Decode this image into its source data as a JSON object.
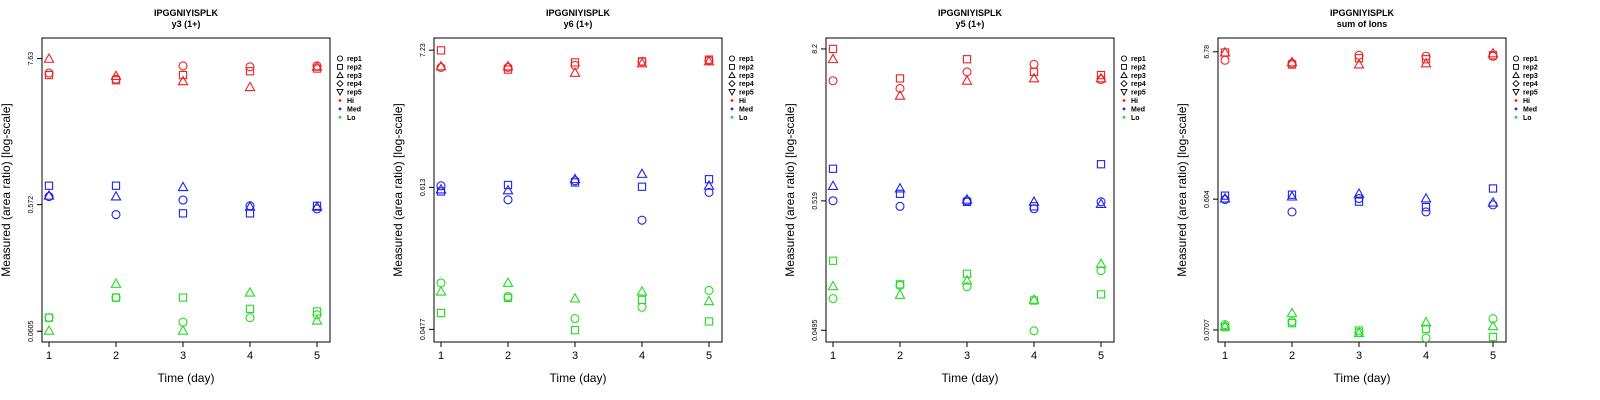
{
  "figure_title": "IPGGNIYISPLK",
  "marker_colors": {
    "Hi": "#ee2222",
    "Med": "#2222ee",
    "Lo": "#22dd22"
  },
  "rep_shapes": {
    "rep1": "circle",
    "rep2": "square",
    "rep3": "triangle-up",
    "rep4": "diamond",
    "rep5": "triangle-down"
  },
  "chart_data": [
    {
      "type": "scatter",
      "title": "IPGGNIYISPLK",
      "subtitle": "y3 (1+)",
      "xlabel": "Time (day)",
      "ylabel": "Measured (area ratio) [log-scale]",
      "x_ticks": [
        "1",
        "2",
        "3",
        "4",
        "5"
      ],
      "y_ticks": [
        {
          "value": 7.63,
          "label": "7.63"
        },
        {
          "value": 0.572,
          "label": "0.572"
        },
        {
          "value": 0.0605,
          "label": "0.0605"
        }
      ],
      "ylim_log": [
        0.05,
        11.0
      ],
      "legend": [
        "rep1",
        "rep2",
        "rep3",
        "rep4",
        "rep5",
        "Hi",
        "Med",
        "Lo"
      ],
      "series": [
        {
          "group": "Hi",
          "rep": "rep1",
          "x": [
            1,
            2,
            3,
            4,
            5
          ],
          "y": [
            5.9,
            5.3,
            6.7,
            6.6,
            6.7
          ]
        },
        {
          "group": "Hi",
          "rep": "rep2",
          "x": [
            1,
            2,
            3,
            4,
            5
          ],
          "y": [
            5.7,
            5.2,
            5.7,
            6.1,
            6.4
          ]
        },
        {
          "group": "Hi",
          "rep": "rep3",
          "x": [
            1,
            2,
            3,
            4,
            5
          ],
          "y": [
            7.6,
            5.6,
            5.1,
            4.6,
            6.6
          ]
        },
        {
          "group": "Med",
          "rep": "rep1",
          "x": [
            1,
            2,
            3,
            4,
            5
          ],
          "y": [
            0.66,
            0.48,
            0.62,
            0.56,
            0.53
          ]
        },
        {
          "group": "Med",
          "rep": "rep2",
          "x": [
            1,
            2,
            3,
            4,
            5
          ],
          "y": [
            0.8,
            0.8,
            0.49,
            0.49,
            0.56
          ]
        },
        {
          "group": "Med",
          "rep": "rep3",
          "x": [
            1,
            2,
            3,
            4,
            5
          ],
          "y": [
            0.67,
            0.66,
            0.78,
            0.55,
            0.55
          ]
        },
        {
          "group": "Lo",
          "rep": "rep1",
          "x": [
            1,
            2,
            3,
            4,
            5
          ],
          "y": [
            0.077,
            0.11,
            0.071,
            0.077,
            0.081
          ]
        },
        {
          "group": "Lo",
          "rep": "rep2",
          "x": [
            1,
            2,
            3,
            4,
            5
          ],
          "y": [
            0.077,
            0.11,
            0.11,
            0.09,
            0.086
          ]
        },
        {
          "group": "Lo",
          "rep": "rep3",
          "x": [
            1,
            2,
            3,
            4,
            5
          ],
          "y": [
            0.061,
            0.14,
            0.061,
            0.12,
            0.073
          ]
        }
      ]
    },
    {
      "type": "scatter",
      "title": "IPGGNIYISPLK",
      "subtitle": "y6 (1+)",
      "xlabel": "Time (day)",
      "ylabel": "Measured (area ratio) [log-scale]",
      "x_ticks": [
        "1",
        "2",
        "3",
        "4",
        "5"
      ],
      "y_ticks": [
        {
          "value": 7.23,
          "label": "7.23"
        },
        {
          "value": 0.613,
          "label": "0.613"
        },
        {
          "value": 0.0477,
          "label": "0.0477"
        }
      ],
      "ylim_log": [
        0.038,
        9.0
      ],
      "legend": [
        "rep1",
        "rep2",
        "rep3",
        "rep4",
        "rep5",
        "Hi",
        "Med",
        "Lo"
      ],
      "series": [
        {
          "group": "Hi",
          "rep": "rep1",
          "x": [
            1,
            2,
            3,
            4,
            5
          ],
          "y": [
            5.3,
            5.3,
            5.5,
            5.9,
            6.0
          ]
        },
        {
          "group": "Hi",
          "rep": "rep2",
          "x": [
            1,
            2,
            3,
            4,
            5
          ],
          "y": [
            7.2,
            5.1,
            5.8,
            5.9,
            6.1
          ]
        },
        {
          "group": "Hi",
          "rep": "rep3",
          "x": [
            1,
            2,
            3,
            4,
            5
          ],
          "y": [
            5.4,
            5.4,
            4.8,
            5.7,
            5.9
          ]
        },
        {
          "group": "Med",
          "rep": "rep1",
          "x": [
            1,
            2,
            3,
            4,
            5
          ],
          "y": [
            0.63,
            0.49,
            0.69,
            0.34,
            0.56
          ]
        },
        {
          "group": "Med",
          "rep": "rep2",
          "x": [
            1,
            2,
            3,
            4,
            5
          ],
          "y": [
            0.57,
            0.64,
            0.67,
            0.62,
            0.71
          ]
        },
        {
          "group": "Med",
          "rep": "rep3",
          "x": [
            1,
            2,
            3,
            4,
            5
          ],
          "y": [
            0.59,
            0.58,
            0.71,
            0.78,
            0.63
          ]
        },
        {
          "group": "Lo",
          "rep": "rep1",
          "x": [
            1,
            2,
            3,
            4,
            5
          ],
          "y": [
            0.11,
            0.086,
            0.058,
            0.071,
            0.096
          ]
        },
        {
          "group": "Lo",
          "rep": "rep2",
          "x": [
            1,
            2,
            3,
            4,
            5
          ],
          "y": [
            0.064,
            0.084,
            0.047,
            0.081,
            0.055
          ]
        },
        {
          "group": "Lo",
          "rep": "rep3",
          "x": [
            1,
            2,
            3,
            4,
            5
          ],
          "y": [
            0.094,
            0.11,
            0.083,
            0.094,
            0.079
          ]
        }
      ]
    },
    {
      "type": "scatter",
      "title": "IPGGNIYISPLK",
      "subtitle": "y5 (1+)",
      "xlabel": "Time (day)",
      "ylabel": "Measured (area ratio) [log-scale]",
      "x_ticks": [
        "1",
        "2",
        "3",
        "4",
        "5"
      ],
      "y_ticks": [
        {
          "value": 8.2,
          "label": "8.2"
        },
        {
          "value": 0.519,
          "label": "0.519"
        },
        {
          "value": 0.0495,
          "label": "0.0495"
        }
      ],
      "ylim_log": [
        0.04,
        10.0
      ],
      "legend": [
        "rep1",
        "rep2",
        "rep3",
        "rep4",
        "rep5",
        "Hi",
        "Med",
        "Lo"
      ],
      "series": [
        {
          "group": "Hi",
          "rep": "rep1",
          "x": [
            1,
            2,
            3,
            4,
            5
          ],
          "y": [
            4.6,
            4.0,
            5.4,
            6.2,
            4.7
          ]
        },
        {
          "group": "Hi",
          "rep": "rep2",
          "x": [
            1,
            2,
            3,
            4,
            5
          ],
          "y": [
            8.2,
            4.8,
            6.8,
            5.4,
            5.1
          ]
        },
        {
          "group": "Hi",
          "rep": "rep3",
          "x": [
            1,
            2,
            3,
            4,
            5
          ],
          "y": [
            6.8,
            3.5,
            4.6,
            4.8,
            4.8
          ]
        },
        {
          "group": "Med",
          "rep": "rep1",
          "x": [
            1,
            2,
            3,
            4,
            5
          ],
          "y": [
            0.52,
            0.47,
            0.52,
            0.45,
            0.51
          ]
        },
        {
          "group": "Med",
          "rep": "rep2",
          "x": [
            1,
            2,
            3,
            4,
            5
          ],
          "y": [
            0.93,
            0.59,
            0.51,
            0.47,
            1.01
          ]
        },
        {
          "group": "Med",
          "rep": "rep3",
          "x": [
            1,
            2,
            3,
            4,
            5
          ],
          "y": [
            0.68,
            0.65,
            0.53,
            0.51,
            0.49
          ]
        },
        {
          "group": "Lo",
          "rep": "rep1",
          "x": [
            1,
            2,
            3,
            4,
            5
          ],
          "y": [
            0.088,
            0.112,
            0.109,
            0.049,
            0.146
          ]
        },
        {
          "group": "Lo",
          "rep": "rep2",
          "x": [
            1,
            2,
            3,
            4,
            5
          ],
          "y": [
            0.175,
            0.114,
            0.138,
            0.085,
            0.095
          ]
        },
        {
          "group": "Lo",
          "rep": "rep3",
          "x": [
            1,
            2,
            3,
            4,
            5
          ],
          "y": [
            0.11,
            0.094,
            0.122,
            0.086,
            0.165
          ]
        }
      ]
    },
    {
      "type": "scatter",
      "title": "IPGGNIYISPLK",
      "subtitle": "sum of Ions",
      "xlabel": "Time (day)",
      "ylabel": "Measured (area ratio) [log-scale]",
      "x_ticks": [
        "1",
        "2",
        "3",
        "4",
        "5"
      ],
      "y_ticks": [
        {
          "value": 6.78,
          "label": "6.78"
        },
        {
          "value": 0.604,
          "label": "0.604"
        },
        {
          "value": 0.0707,
          "label": "0.0707"
        }
      ],
      "ylim_log": [
        0.058,
        8.5
      ],
      "legend": [
        "rep1",
        "rep2",
        "rep3",
        "rep4",
        "rep5",
        "Hi",
        "Med",
        "Lo"
      ],
      "series": [
        {
          "group": "Hi",
          "rep": "rep1",
          "x": [
            1,
            2,
            3,
            4,
            5
          ],
          "y": [
            5.9,
            5.6,
            6.4,
            6.3,
            6.3
          ]
        },
        {
          "group": "Hi",
          "rep": "rep2",
          "x": [
            1,
            2,
            3,
            4,
            5
          ],
          "y": [
            6.7,
            5.5,
            6.1,
            6.0,
            6.4
          ]
        },
        {
          "group": "Hi",
          "rep": "rep3",
          "x": [
            1,
            2,
            3,
            4,
            5
          ],
          "y": [
            6.7,
            5.7,
            5.5,
            5.6,
            6.6
          ]
        },
        {
          "group": "Med",
          "rep": "rep1",
          "x": [
            1,
            2,
            3,
            4,
            5
          ],
          "y": [
            0.6,
            0.49,
            0.61,
            0.49,
            0.55
          ]
        },
        {
          "group": "Med",
          "rep": "rep2",
          "x": [
            1,
            2,
            3,
            4,
            5
          ],
          "y": [
            0.64,
            0.65,
            0.58,
            0.53,
            0.72
          ]
        },
        {
          "group": "Med",
          "rep": "rep3",
          "x": [
            1,
            2,
            3,
            4,
            5
          ],
          "y": [
            0.61,
            0.63,
            0.66,
            0.61,
            0.57
          ]
        },
        {
          "group": "Lo",
          "rep": "rep1",
          "x": [
            1,
            2,
            3,
            4,
            5
          ],
          "y": [
            0.077,
            0.081,
            0.068,
            0.062,
            0.085
          ]
        },
        {
          "group": "Lo",
          "rep": "rep2",
          "x": [
            1,
            2,
            3,
            4,
            5
          ],
          "y": [
            0.074,
            0.079,
            0.07,
            0.072,
            0.063
          ]
        },
        {
          "group": "Lo",
          "rep": "rep3",
          "x": [
            1,
            2,
            3,
            4,
            5
          ],
          "y": [
            0.075,
            0.093,
            0.067,
            0.08,
            0.075
          ]
        }
      ]
    }
  ]
}
